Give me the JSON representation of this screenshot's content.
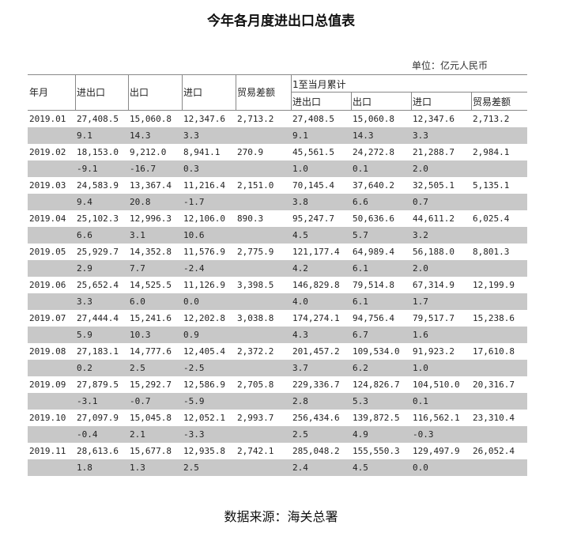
{
  "title": "今年各月度进出口总值表",
  "unit": "单位：亿元人民币",
  "header": {
    "month": "年月",
    "total": "进出口",
    "export": "出口",
    "import": "进口",
    "balance": "贸易差额",
    "cumulative": "1至当月累计",
    "cum_total": "进出口",
    "cum_export": "出口",
    "cum_import": "进口",
    "cum_balance": "贸易差额"
  },
  "rows": [
    {
      "month": "2019.01",
      "values": [
        "27,408.5",
        "15,060.8",
        "12,347.6",
        "2,713.2",
        "27,408.5",
        "15,060.8",
        "12,347.6",
        "2,713.2"
      ],
      "pct": [
        "9.1",
        "14.3",
        "3.3",
        "",
        "9.1",
        "14.3",
        "3.3",
        ""
      ]
    },
    {
      "month": "2019.02",
      "values": [
        "18,153.0",
        "9,212.0",
        "8,941.1",
        "270.9",
        "45,561.5",
        "24,272.8",
        "21,288.7",
        "2,984.1"
      ],
      "pct": [
        "-9.1",
        "-16.7",
        "0.3",
        "",
        "1.0",
        "0.1",
        "2.0",
        ""
      ]
    },
    {
      "month": "2019.03",
      "values": [
        "24,583.9",
        "13,367.4",
        "11,216.4",
        "2,151.0",
        "70,145.4",
        "37,640.2",
        "32,505.1",
        "5,135.1"
      ],
      "pct": [
        "9.4",
        "20.8",
        "-1.7",
        "",
        "3.8",
        "6.6",
        "0.7",
        ""
      ]
    },
    {
      "month": "2019.04",
      "values": [
        "25,102.3",
        "12,996.3",
        "12,106.0",
        "890.3",
        "95,247.7",
        "50,636.6",
        "44,611.2",
        "6,025.4"
      ],
      "pct": [
        "6.6",
        "3.1",
        "10.6",
        "",
        "4.5",
        "5.7",
        "3.2",
        ""
      ]
    },
    {
      "month": "2019.05",
      "values": [
        "25,929.7",
        "14,352.8",
        "11,576.9",
        "2,775.9",
        "121,177.4",
        "64,989.4",
        "56,188.0",
        "8,801.3"
      ],
      "pct": [
        "2.9",
        "7.7",
        "-2.4",
        "",
        "4.2",
        "6.1",
        "2.0",
        ""
      ]
    },
    {
      "month": "2019.06",
      "values": [
        "25,652.4",
        "14,525.5",
        "11,126.9",
        "3,398.5",
        "146,829.8",
        "79,514.8",
        "67,314.9",
        "12,199.9"
      ],
      "pct": [
        "3.3",
        "6.0",
        "0.0",
        "",
        "4.0",
        "6.1",
        "1.7",
        ""
      ]
    },
    {
      "month": "2019.07",
      "values": [
        "27,444.4",
        "15,241.6",
        "12,202.8",
        "3,038.8",
        "174,274.1",
        "94,756.4",
        "79,517.7",
        "15,238.6"
      ],
      "pct": [
        "5.9",
        "10.3",
        "0.9",
        "",
        "4.3",
        "6.7",
        "1.6",
        ""
      ]
    },
    {
      "month": "2019.08",
      "values": [
        "27,183.1",
        "14,777.6",
        "12,405.4",
        "2,372.2",
        "201,457.2",
        "109,534.0",
        "91,923.2",
        "17,610.8"
      ],
      "pct": [
        "0.2",
        "2.5",
        "-2.5",
        "",
        "3.7",
        "6.2",
        "1.0",
        ""
      ]
    },
    {
      "month": "2019.09",
      "values": [
        "27,879.5",
        "15,292.7",
        "12,586.9",
        "2,705.8",
        "229,336.7",
        "124,826.7",
        "104,510.0",
        "20,316.7"
      ],
      "pct": [
        "-3.1",
        "-0.7",
        "-5.9",
        "",
        "2.8",
        "5.3",
        "0.1",
        ""
      ]
    },
    {
      "month": "2019.10",
      "values": [
        "27,097.9",
        "15,045.8",
        "12,052.1",
        "2,993.7",
        "256,434.6",
        "139,872.5",
        "116,562.1",
        "23,310.4"
      ],
      "pct": [
        "-0.4",
        "2.1",
        "-3.3",
        "",
        "2.5",
        "4.9",
        "-0.3",
        ""
      ]
    },
    {
      "month": "2019.11",
      "values": [
        "28,613.6",
        "15,677.8",
        "12,935.8",
        "2,742.1",
        "285,048.2",
        "155,550.3",
        "129,497.9",
        "26,052.4"
      ],
      "pct": [
        "1.8",
        "1.3",
        "2.5",
        "",
        "2.4",
        "4.5",
        "0.0",
        ""
      ]
    }
  ],
  "source": "数据来源：海关总署"
}
